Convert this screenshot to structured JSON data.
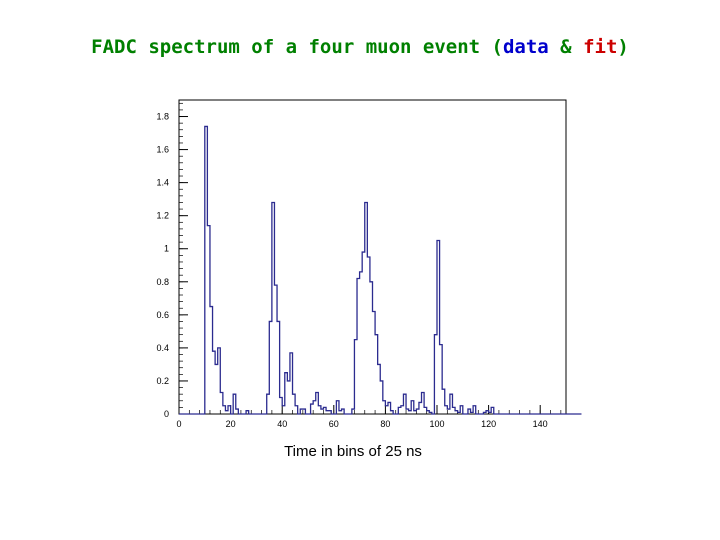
{
  "title": {
    "prefix": "FADC spectrum of a four muon event (",
    "data_word": "data",
    "amp": " & ",
    "fit_word": "fit",
    "suffix": ")"
  },
  "colors": {
    "title_main": "#008000",
    "title_data": "#0000cc",
    "title_fit": "#cc0000",
    "histogram_line": "#2b2b8f",
    "axis": "#000000"
  },
  "chart_data": {
    "type": "histogram",
    "title": "FADC spectrum of a four muon event (data & fit)",
    "xlabel": "Time in bins of 25 ns",
    "ylabel": "",
    "xlim": [
      0,
      150
    ],
    "ylim": [
      0,
      1.9
    ],
    "xticks": [
      0,
      20,
      40,
      60,
      80,
      100,
      120,
      140
    ],
    "yticks": [
      0,
      0.2,
      0.4,
      0.6,
      0.8,
      1,
      1.2,
      1.4,
      1.6,
      1.8
    ],
    "bin_width": 1,
    "bin_start": 0,
    "values": [
      0,
      0,
      0,
      0,
      0,
      0,
      0,
      0,
      0,
      0,
      1.74,
      1.14,
      0.65,
      0.38,
      0.3,
      0.4,
      0.13,
      0.05,
      0.02,
      0.05,
      0,
      0.12,
      0.03,
      0,
      0,
      0,
      0.02,
      0,
      0,
      0,
      0,
      0,
      0,
      0,
      0.12,
      0.56,
      1.28,
      0.78,
      0.56,
      0.1,
      0.05,
      0.25,
      0.2,
      0.37,
      0.12,
      0.05,
      0,
      0.03,
      0.03,
      0,
      0,
      0.06,
      0.08,
      0.13,
      0.05,
      0.03,
      0.04,
      0.02,
      0.02,
      0,
      0,
      0.08,
      0.02,
      0.03,
      0,
      0,
      0,
      0.03,
      0.45,
      0.82,
      0.86,
      0.98,
      1.28,
      0.95,
      0.8,
      0.62,
      0.48,
      0.3,
      0.2,
      0.08,
      0.05,
      0.07,
      0.02,
      0,
      0,
      0.04,
      0.05,
      0.12,
      0.03,
      0.02,
      0.08,
      0.02,
      0.03,
      0.07,
      0.13,
      0.04,
      0.02,
      0.01,
      0,
      0.48,
      1.05,
      0.42,
      0.15,
      0.05,
      0.03,
      0.12,
      0.04,
      0.02,
      0.01,
      0.05,
      0,
      0,
      0.03,
      0.01,
      0.05,
      0,
      0,
      0,
      0.01,
      0.02,
      0.01,
      0.04,
      0,
      0,
      0,
      0,
      0,
      0,
      0,
      0,
      0,
      0,
      0,
      0,
      0,
      0,
      0,
      0,
      0,
      0,
      0,
      0,
      0,
      0,
      0,
      0,
      0,
      0,
      0,
      0,
      0,
      0,
      0,
      0,
      0,
      0
    ]
  }
}
